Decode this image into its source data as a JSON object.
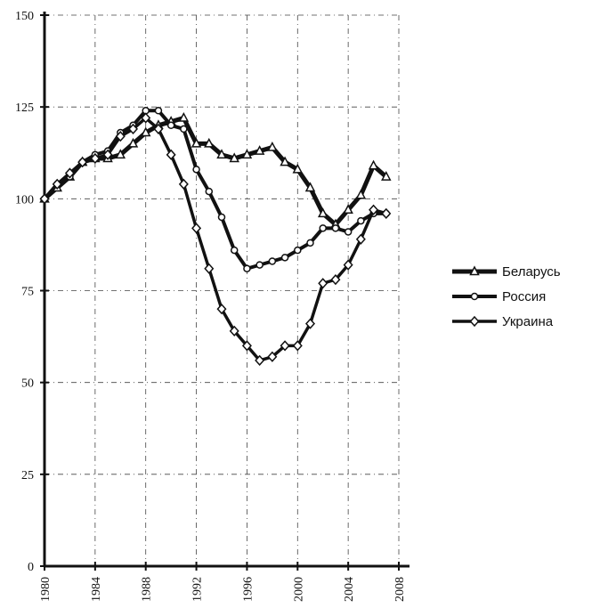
{
  "chart_data": {
    "type": "line",
    "x": [
      1980,
      1981,
      1982,
      1983,
      1984,
      1985,
      1986,
      1987,
      1988,
      1989,
      1990,
      1991,
      1992,
      1993,
      1994,
      1995,
      1996,
      1997,
      1998,
      1999,
      2000,
      2001,
      2002,
      2003,
      2004,
      2005,
      2006,
      2007
    ],
    "series": [
      {
        "name": "Беларусь",
        "color": "#111111",
        "marker": "triangle",
        "values": [
          100,
          103,
          106,
          110,
          111,
          111,
          112,
          115,
          118,
          120,
          121,
          122,
          115,
          115,
          112,
          111,
          112,
          113,
          114,
          110,
          108,
          103,
          96,
          93,
          97,
          101,
          109,
          106
        ]
      },
      {
        "name": "Россия",
        "color": "#111111",
        "marker": "circle",
        "values": [
          100,
          104,
          106,
          110,
          112,
          113,
          118,
          120,
          124,
          124,
          120,
          119,
          108,
          102,
          95,
          86,
          81,
          82,
          83,
          84,
          86,
          88,
          92,
          92,
          91,
          94,
          96,
          96
        ]
      },
      {
        "name": "Украина",
        "color": "#111111",
        "marker": "diamond",
        "values": [
          100,
          104,
          107,
          110,
          111,
          112,
          117,
          119,
          122,
          119,
          112,
          104,
          92,
          81,
          70,
          64,
          60,
          56,
          57,
          60,
          60,
          66,
          77,
          78,
          82,
          89,
          97,
          96
        ]
      }
    ],
    "xlim": [
      1980,
      2008
    ],
    "xticks": [
      1980,
      1984,
      1988,
      1992,
      1996,
      2000,
      2004,
      2008
    ],
    "ylim": [
      0,
      150
    ],
    "yticks": [
      0,
      25,
      50,
      75,
      100,
      125,
      150
    ],
    "grid": true,
    "legend": "right"
  }
}
